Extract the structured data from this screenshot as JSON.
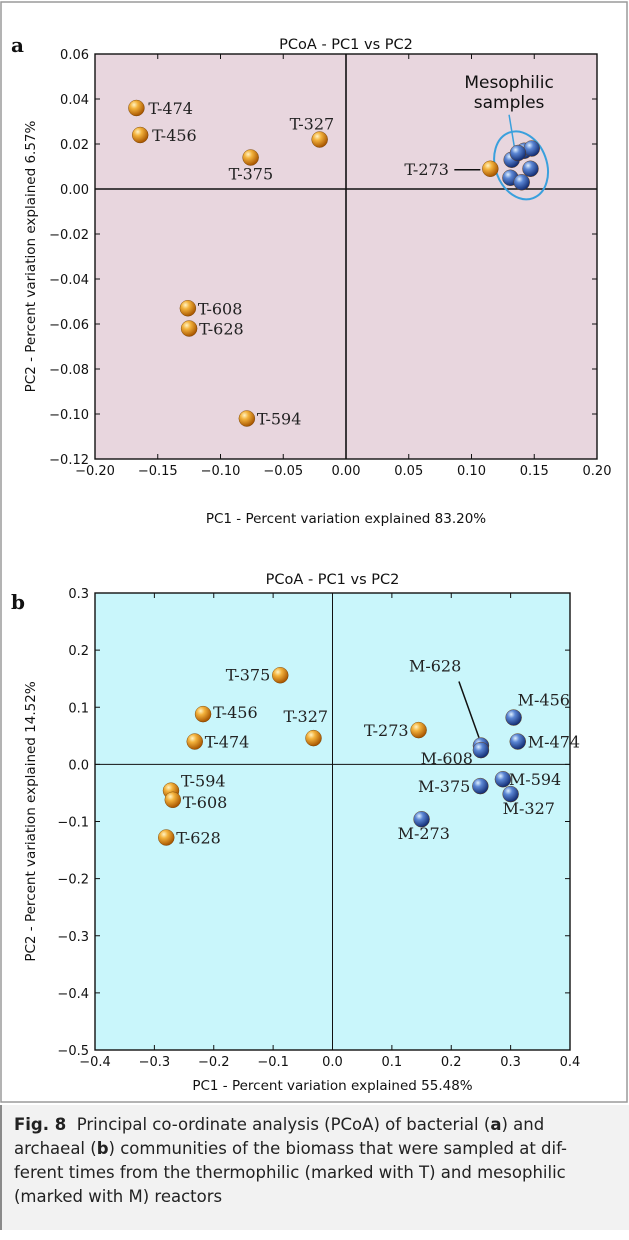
{
  "figure": {
    "caption_label": "Fig. 8",
    "caption_parts": [
      {
        "text": "Principal co-ordinate analysis (PCoA) of bacterial (",
        "bold": false
      },
      {
        "text": "a",
        "bold": true
      },
      {
        "text": ") and archaeal (",
        "bold": false
      },
      {
        "text": "b",
        "bold": true
      },
      {
        "text": ") communities of the biomass that were sampled at dif-ferent times from the thermophilic (marked with T) and mesophilic (marked with M) reactors",
        "bold": false
      }
    ]
  },
  "colors": {
    "panel_a_bg": "#e8d6de",
    "panel_b_bg": "#c9f6fb",
    "thermophilic_marker": "#e08a10",
    "mesophilic_marker": "#2b4fa8",
    "ellipse": "#3aa0dd",
    "frame": "#ffffff",
    "frame_border": "#9a9a9a"
  },
  "chart_data": [
    {
      "type": "scatter",
      "panel_letter": "a",
      "title": "PCoA - PC1 vs PC2",
      "xlabel": "PC1 - Percent variation explained 83.20%",
      "ylabel": "PC2 - Percent variation explained 6.57%",
      "xlim": [
        -0.2,
        0.2
      ],
      "ylim": [
        -0.12,
        0.06
      ],
      "xticks": [
        "−0.20",
        "−0.15",
        "−0.10",
        "−0.05",
        "0.00",
        "0.05",
        "0.10",
        "0.15",
        "0.20"
      ],
      "yticks": [
        "−0.12",
        "−0.10",
        "−0.08",
        "−0.06",
        "−0.04",
        "−0.02",
        "0.00",
        "0.02",
        "0.04",
        "0.06"
      ],
      "series": [
        {
          "group": "thermophilic",
          "points": [
            {
              "label": "T-474",
              "x": -0.167,
              "y": 0.036
            },
            {
              "label": "T-456",
              "x": -0.164,
              "y": 0.024
            },
            {
              "label": "T-375",
              "x": -0.076,
              "y": 0.014
            },
            {
              "label": "T-327",
              "x": -0.021,
              "y": 0.022
            },
            {
              "label": "T-273",
              "x": 0.115,
              "y": 0.009
            },
            {
              "label": "T-608",
              "x": -0.126,
              "y": -0.053
            },
            {
              "label": "T-628",
              "x": -0.125,
              "y": -0.062
            },
            {
              "label": "T-594",
              "x": -0.079,
              "y": -0.102
            }
          ]
        },
        {
          "group": "mesophilic",
          "points": [
            {
              "label": "",
              "x": 0.132,
              "y": 0.013
            },
            {
              "label": "",
              "x": 0.142,
              "y": 0.017
            },
            {
              "label": "",
              "x": 0.148,
              "y": 0.018
            },
            {
              "label": "",
              "x": 0.137,
              "y": 0.016
            },
            {
              "label": "",
              "x": 0.147,
              "y": 0.009
            },
            {
              "label": "",
              "x": 0.131,
              "y": 0.005
            },
            {
              "label": "",
              "x": 0.14,
              "y": 0.003
            }
          ]
        }
      ],
      "annotation": "Mesophilic\nsamples"
    },
    {
      "type": "scatter",
      "panel_letter": "b",
      "title": "PCoA - PC1 vs PC2",
      "xlabel": "PC1 - Percent variation explained 55.48%",
      "ylabel": "PC2 - Percent variation explained 14.52%",
      "xlim": [
        -0.4,
        0.4
      ],
      "ylim": [
        -0.5,
        0.3
      ],
      "xticks": [
        "−0.4",
        "−0.3",
        "−0.2",
        "−0.1",
        "0.0",
        "0.1",
        "0.2",
        "0.3",
        "0.4"
      ],
      "yticks": [
        "−0.5",
        "−0.4",
        "−0.3",
        "−0.2",
        "−0.1",
        "0.0",
        "0.1",
        "0.2",
        "0.3"
      ],
      "series": [
        {
          "group": "thermophilic",
          "points": [
            {
              "label": "T-375",
              "x": -0.088,
              "y": 0.156
            },
            {
              "label": "T-456",
              "x": -0.218,
              "y": 0.088
            },
            {
              "label": "T-474",
              "x": -0.232,
              "y": 0.04
            },
            {
              "label": "T-327",
              "x": -0.032,
              "y": 0.046
            },
            {
              "label": "T-273",
              "x": 0.145,
              "y": 0.06
            },
            {
              "label": "T-594",
              "x": -0.272,
              "y": -0.046
            },
            {
              "label": "T-608",
              "x": -0.269,
              "y": -0.062
            },
            {
              "label": "T-628",
              "x": -0.28,
              "y": -0.128
            }
          ]
        },
        {
          "group": "mesophilic",
          "points": [
            {
              "label": "M-628",
              "x": 0.25,
              "y": 0.033
            },
            {
              "label": "M-608",
              "x": 0.25,
              "y": 0.025
            },
            {
              "label": "M-456",
              "x": 0.305,
              "y": 0.082
            },
            {
              "label": "M-474",
              "x": 0.312,
              "y": 0.04
            },
            {
              "label": "M-375",
              "x": 0.249,
              "y": -0.038
            },
            {
              "label": "M-594",
              "x": 0.287,
              "y": -0.026
            },
            {
              "label": "M-327",
              "x": 0.3,
              "y": -0.052
            },
            {
              "label": "M-273",
              "x": 0.15,
              "y": -0.096
            }
          ]
        }
      ]
    }
  ]
}
